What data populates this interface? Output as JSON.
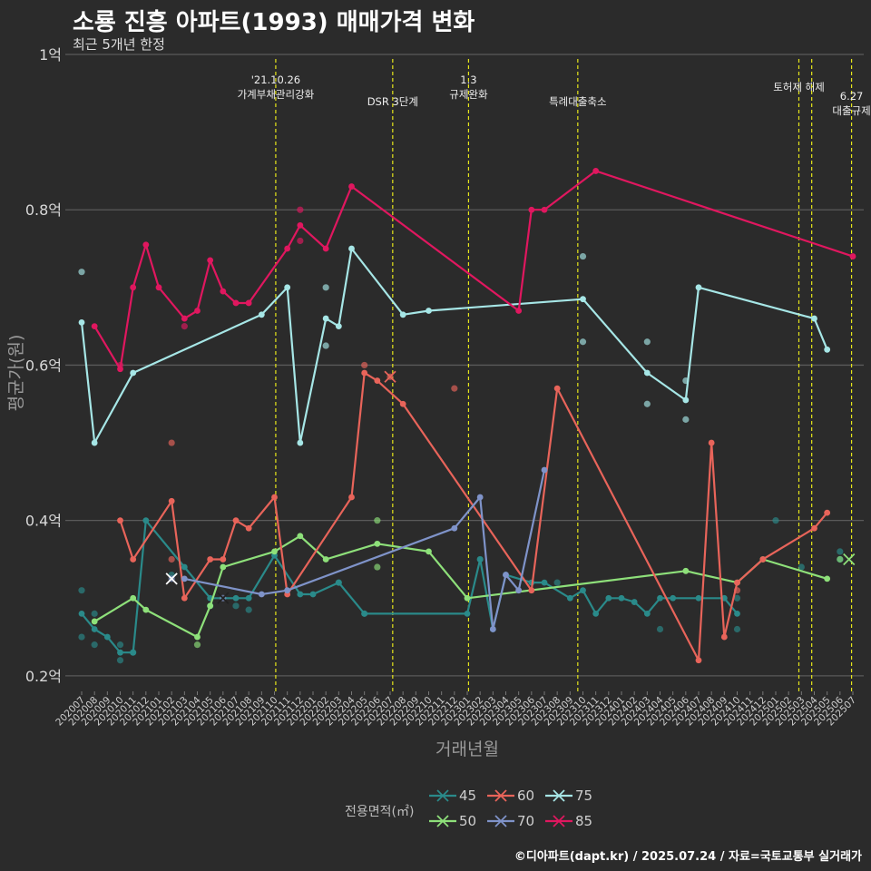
{
  "title": "소룡 진흥 아파트(1993) 매매가격 변화",
  "subtitle": "최근 5개년 한정",
  "footer": "©디아파트(dapt.kr) / 2025.07.24 / 자료=국토교통부 실거래가",
  "chart_data": {
    "type": "line",
    "xlabel": "거래년월",
    "ylabel": "평균가(원)",
    "ylim": [
      0.18,
      1.0
    ],
    "y_ticks": [
      {
        "v": 0.2,
        "label": "0.2억"
      },
      {
        "v": 0.4,
        "label": "0.4억"
      },
      {
        "v": 0.6,
        "label": "0.6억"
      },
      {
        "v": 0.8,
        "label": "0.8억"
      },
      {
        "v": 1.0,
        "label": "1억"
      }
    ],
    "months": [
      "202007",
      "202008",
      "202009",
      "202010",
      "202011",
      "202012",
      "202101",
      "202102",
      "202103",
      "202104",
      "202105",
      "202106",
      "202107",
      "202108",
      "202109",
      "202110",
      "202111",
      "202112",
      "202201",
      "202202",
      "202203",
      "202204",
      "202205",
      "202206",
      "202207",
      "202208",
      "202209",
      "202210",
      "202211",
      "202212",
      "202301",
      "202302",
      "202303",
      "202304",
      "202305",
      "202306",
      "202307",
      "202308",
      "202309",
      "202310",
      "202311",
      "202312",
      "202401",
      "202402",
      "202403",
      "202404",
      "202405",
      "202406",
      "202407",
      "202408",
      "202409",
      "202410",
      "202411",
      "202412",
      "202501",
      "202502",
      "202503",
      "202504",
      "202505",
      "202506",
      "202507"
    ],
    "policy_lines": [
      {
        "x": 15.1,
        "label": "'21.10.26\n가계부채관리강화"
      },
      {
        "x": 24.2,
        "label": "DSR 3단계"
      },
      {
        "x": 30.1,
        "label": "1.3\n규제완화"
      },
      {
        "x": 38.6,
        "label": "특례대출축소"
      },
      {
        "x": 55.8,
        "label": "토허제 해제"
      },
      {
        "x": 56.8,
        "label": ""
      },
      {
        "x": 59.9,
        "label": "6.27\n대출규제"
      }
    ],
    "legend_title": "전용면적(㎡)",
    "series": [
      {
        "name": "45",
        "color": "#2a8a8a",
        "line": [
          [
            0,
            0.28
          ],
          [
            1,
            0.26
          ],
          [
            2,
            0.25
          ],
          [
            3,
            0.23
          ],
          [
            4,
            0.23
          ],
          [
            5,
            0.4
          ],
          [
            8,
            0.34
          ],
          [
            10,
            0.3
          ],
          [
            12,
            0.3
          ],
          [
            13,
            0.3
          ],
          [
            15,
            0.355
          ],
          [
            17,
            0.305
          ],
          [
            18,
            0.305
          ],
          [
            20,
            0.32
          ],
          [
            22,
            0.28
          ],
          [
            30,
            0.28
          ],
          [
            31,
            0.35
          ],
          [
            32,
            0.26
          ],
          [
            33,
            0.33
          ],
          [
            35,
            0.32
          ],
          [
            36,
            0.32
          ],
          [
            38,
            0.3
          ],
          [
            39,
            0.31
          ],
          [
            40,
            0.28
          ],
          [
            41,
            0.3
          ],
          [
            42,
            0.3
          ],
          [
            43,
            0.295
          ],
          [
            44,
            0.28
          ],
          [
            45,
            0.3
          ],
          [
            46,
            0.3
          ],
          [
            48,
            0.3
          ],
          [
            50,
            0.3
          ],
          [
            51,
            0.28
          ]
        ],
        "points": [
          [
            0,
            0.31
          ],
          [
            0,
            0.25
          ],
          [
            1,
            0.28
          ],
          [
            1,
            0.24
          ],
          [
            3,
            0.24
          ],
          [
            3,
            0.22
          ],
          [
            4,
            0.23
          ],
          [
            7,
            0.33
          ],
          [
            10,
            0.29
          ],
          [
            12,
            0.29
          ],
          [
            13,
            0.285
          ],
          [
            20,
            0.32
          ],
          [
            22,
            0.28
          ],
          [
            31,
            0.35
          ],
          [
            37,
            0.32
          ],
          [
            45,
            0.26
          ],
          [
            51,
            0.3
          ],
          [
            51,
            0.26
          ],
          [
            54,
            0.4
          ],
          [
            56,
            0.34
          ],
          [
            59,
            0.36
          ],
          [
            59,
            0.35
          ]
        ]
      },
      {
        "name": "50",
        "color": "#8ee07a",
        "line": [
          [
            1,
            0.27
          ],
          [
            4,
            0.3
          ],
          [
            5,
            0.285
          ],
          [
            9,
            0.25
          ],
          [
            10,
            0.29
          ],
          [
            11,
            0.34
          ],
          [
            15,
            0.36
          ],
          [
            17,
            0.38
          ],
          [
            19,
            0.35
          ],
          [
            23,
            0.37
          ],
          [
            27,
            0.36
          ],
          [
            30,
            0.3
          ],
          [
            47,
            0.335
          ],
          [
            51,
            0.32
          ],
          [
            53,
            0.35
          ],
          [
            58,
            0.325
          ]
        ],
        "points": [
          [
            9,
            0.24
          ],
          [
            23,
            0.4
          ],
          [
            23,
            0.34
          ],
          [
            59,
            0.35
          ]
        ]
      },
      {
        "name": "60",
        "color": "#e8645a",
        "line": [
          [
            3,
            0.4
          ],
          [
            4,
            0.35
          ],
          [
            7,
            0.425
          ],
          [
            8,
            0.3
          ],
          [
            10,
            0.35
          ],
          [
            11,
            0.35
          ],
          [
            12,
            0.4
          ],
          [
            13,
            0.39
          ],
          [
            15,
            0.43
          ],
          [
            16,
            0.305
          ],
          [
            21,
            0.43
          ],
          [
            22,
            0.59
          ],
          [
            23,
            0.58
          ],
          [
            25,
            0.55
          ],
          [
            35,
            0.31
          ],
          [
            37,
            0.57
          ],
          [
            48,
            0.22
          ],
          [
            49,
            0.5
          ],
          [
            50,
            0.25
          ],
          [
            51,
            0.32
          ],
          [
            53,
            0.35
          ],
          [
            57,
            0.39
          ],
          [
            58,
            0.41
          ]
        ],
        "points": [
          [
            7,
            0.5
          ],
          [
            7,
            0.35
          ],
          [
            22,
            0.6
          ],
          [
            24,
            0.585
          ],
          [
            29,
            0.57
          ],
          [
            51,
            0.31
          ]
        ]
      },
      {
        "name": "70",
        "color": "#7f93c9",
        "line": [
          [
            8,
            0.325
          ],
          [
            14,
            0.305
          ],
          [
            16,
            0.31
          ],
          [
            29,
            0.39
          ],
          [
            31,
            0.43
          ],
          [
            32,
            0.26
          ],
          [
            33,
            0.33
          ],
          [
            34,
            0.31
          ],
          [
            36,
            0.465
          ]
        ],
        "points": [
          [
            7,
            0.325
          ],
          [
            11,
            0.3
          ]
        ]
      },
      {
        "name": "75",
        "color": "#a6e6e6",
        "line": [
          [
            0,
            0.655
          ],
          [
            1,
            0.5
          ],
          [
            4,
            0.59
          ],
          [
            14,
            0.665
          ],
          [
            16,
            0.7
          ],
          [
            17,
            0.5
          ],
          [
            19,
            0.66
          ],
          [
            20,
            0.65
          ],
          [
            21,
            0.75
          ],
          [
            25,
            0.665
          ],
          [
            27,
            0.67
          ],
          [
            39,
            0.685
          ],
          [
            44,
            0.59
          ],
          [
            47,
            0.555
          ],
          [
            48,
            0.7
          ],
          [
            57,
            0.66
          ],
          [
            58,
            0.62
          ]
        ],
        "points": [
          [
            0,
            0.72
          ],
          [
            19,
            0.7
          ],
          [
            19,
            0.625
          ],
          [
            39,
            0.74
          ],
          [
            39,
            0.63
          ],
          [
            44,
            0.63
          ],
          [
            44,
            0.55
          ],
          [
            47,
            0.58
          ],
          [
            47,
            0.53
          ]
        ]
      },
      {
        "name": "85",
        "color": "#e0175f",
        "line": [
          [
            1,
            0.65
          ],
          [
            3,
            0.595
          ],
          [
            4,
            0.7
          ],
          [
            5,
            0.755
          ],
          [
            6,
            0.7
          ],
          [
            8,
            0.66
          ],
          [
            9,
            0.67
          ],
          [
            10,
            0.735
          ],
          [
            11,
            0.695
          ],
          [
            12,
            0.68
          ],
          [
            13,
            0.68
          ],
          [
            16,
            0.75
          ],
          [
            17,
            0.78
          ],
          [
            19,
            0.75
          ],
          [
            21,
            0.83
          ],
          [
            34,
            0.67
          ],
          [
            35,
            0.8
          ],
          [
            36,
            0.8
          ],
          [
            40,
            0.85
          ],
          [
            60,
            0.74
          ]
        ],
        "points": [
          [
            3,
            0.6
          ],
          [
            8,
            0.65
          ],
          [
            17,
            0.8
          ],
          [
            17,
            0.76
          ]
        ]
      }
    ]
  }
}
